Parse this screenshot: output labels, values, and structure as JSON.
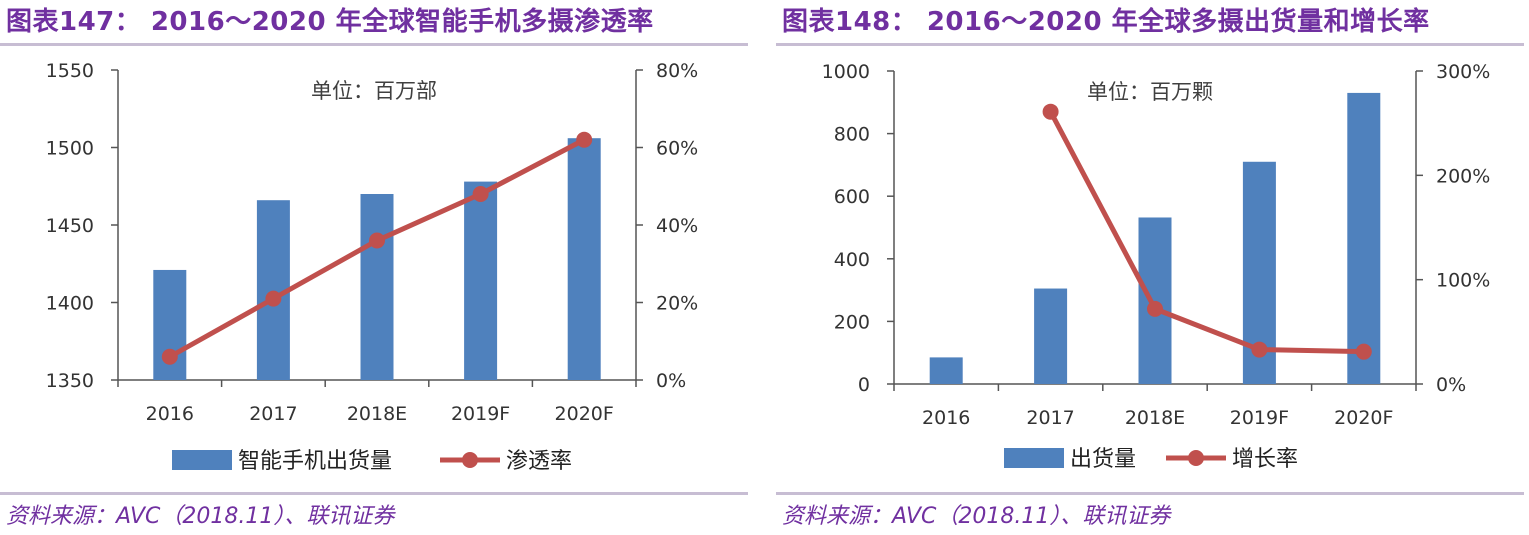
{
  "panels": {
    "left": {
      "title": "图表147：  2016～2020 年全球智能手机多摄渗透率",
      "source": "资料来源：AVC（2018.11）、联讯证券"
    },
    "right": {
      "title": "图表148：  2016～2020 年全球多摄出货量和增长率",
      "source": "资料来源：AVC（2018.11）、联讯证券"
    }
  },
  "colors": {
    "bar": "#4f81bd",
    "line": "#c0504d",
    "title": "#7030a0",
    "separator": "#c7bdd3"
  },
  "chart_data": [
    {
      "type": "bar+line",
      "unit_note": "单位：百万部",
      "categories": [
        "2016",
        "2017",
        "2018E",
        "2019F",
        "2020F"
      ],
      "series": [
        {
          "name": "智能手机出货量",
          "kind": "bar",
          "axis": "left",
          "values": [
            1421,
            1466,
            1470,
            1478,
            1506
          ]
        },
        {
          "name": "渗透率",
          "kind": "line",
          "axis": "right",
          "values": [
            6,
            21,
            36,
            48,
            62
          ]
        }
      ],
      "left_axis": {
        "min": 1350,
        "max": 1550,
        "ticks": [
          "1350",
          "1400",
          "1450",
          "1500",
          "1550"
        ]
      },
      "right_axis": {
        "min": 0,
        "max": 80,
        "ticks": [
          "0%",
          "20%",
          "40%",
          "60%",
          "80%"
        ]
      },
      "grid": false,
      "legend_position": "bottom"
    },
    {
      "type": "bar+line",
      "unit_note": "单位：百万颗",
      "categories": [
        "2016",
        "2017",
        "2018E",
        "2019F",
        "2020F"
      ],
      "series": [
        {
          "name": "出货量",
          "kind": "bar",
          "axis": "left",
          "values": [
            85,
            305,
            532,
            710,
            930
          ]
        },
        {
          "name": "增长率",
          "kind": "line",
          "axis": "right",
          "values": [
            null,
            261,
            72,
            33,
            31
          ]
        }
      ],
      "left_axis": {
        "min": 0,
        "max": 1000,
        "ticks": [
          "0",
          "200",
          "400",
          "600",
          "800",
          "1000"
        ]
      },
      "right_axis": {
        "min": 0,
        "max": 300,
        "ticks": [
          "0%",
          "100%",
          "200%",
          "300%"
        ]
      },
      "grid": false,
      "legend_position": "bottom"
    }
  ]
}
